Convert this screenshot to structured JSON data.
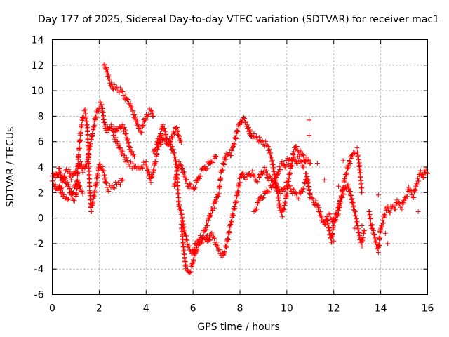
{
  "chart_data": {
    "type": "scatter",
    "title": "Day 177 of 2025, Sidereal Day-to-day VTEC variation (SDTVAR) for receiver mac1",
    "xlabel": "GPS time / hours",
    "ylabel": "SDTVAR / TECUs",
    "xlim": [
      0,
      16
    ],
    "ylim": [
      -6,
      14
    ],
    "xticks": [
      0,
      2,
      4,
      6,
      8,
      10,
      12,
      14,
      16
    ],
    "yticks": [
      -6,
      -4,
      -2,
      0,
      2,
      4,
      6,
      8,
      10,
      12,
      14
    ],
    "grid": true,
    "marker": "+",
    "color": "#ff0000",
    "series": [
      {
        "name": "trace-1",
        "x": [
          0.0,
          0.1,
          0.2,
          0.3,
          0.35,
          0.4,
          0.5,
          0.6,
          0.7,
          0.8,
          0.9,
          1.0,
          1.1,
          1.2,
          1.3,
          1.4,
          1.5,
          1.6,
          1.7,
          1.8,
          1.9,
          2.0,
          2.05,
          2.1,
          2.15,
          2.2,
          2.3,
          2.4,
          2.5,
          2.6,
          2.7,
          2.8,
          2.9,
          3.0,
          3.1,
          3.2,
          3.3,
          3.4,
          3.5
        ],
        "y": [
          3.3,
          3.5,
          3.2,
          3.8,
          3.4,
          3.0,
          3.3,
          3.6,
          3.7,
          3.2,
          3.4,
          3.8,
          3.9,
          4.3,
          3.8,
          4.0,
          4.5,
          5.5,
          6.5,
          7.5,
          8.3,
          8.7,
          8.9,
          8.8,
          8.5,
          7.5,
          7.0,
          6.8,
          7.2,
          7.0,
          6.8,
          7.1,
          6.9,
          7.2,
          6.8,
          6.2,
          5.5,
          5.0,
          4.8
        ]
      },
      {
        "name": "trace-2",
        "x": [
          0.3,
          0.4,
          0.5,
          0.6,
          0.7,
          0.8,
          0.9,
          1.0,
          1.05,
          1.1,
          1.2,
          1.3,
          1.4,
          1.5,
          1.55,
          1.6,
          1.65,
          1.7,
          1.8,
          1.9,
          2.0,
          2.1,
          2.2,
          2.3,
          2.4,
          2.5,
          2.6,
          2.7,
          2.8,
          2.9,
          3.0
        ],
        "y": [
          2.5,
          2.0,
          1.6,
          1.5,
          1.7,
          1.8,
          1.5,
          1.6,
          2.3,
          4.5,
          6.5,
          8.0,
          8.3,
          7.0,
          4.5,
          2.0,
          0.6,
          0.9,
          2.0,
          3.0,
          4.2,
          4.0,
          3.5,
          2.6,
          2.3,
          2.4,
          2.5,
          2.6,
          2.7,
          2.8,
          3.0
        ]
      },
      {
        "name": "trace-3",
        "x": [
          0.0,
          0.1,
          0.2,
          0.3,
          0.4,
          0.5,
          0.6,
          0.7,
          0.8,
          0.9,
          1.0,
          1.1,
          1.2,
          1.3
        ],
        "y": [
          2.9,
          2.6,
          2.1,
          2.3,
          2.6,
          3.3,
          2.8,
          2.4,
          2.0,
          2.2,
          2.6,
          2.8,
          2.2,
          1.9
        ]
      },
      {
        "name": "trace-4",
        "x": [
          2.2,
          2.3,
          2.4,
          2.5,
          2.6,
          2.7,
          2.8,
          2.9,
          3.0,
          3.1,
          3.2,
          3.3,
          3.4,
          3.5,
          3.6,
          3.7,
          3.8,
          3.9,
          4.0,
          4.1,
          4.2,
          4.25,
          4.3
        ],
        "y": [
          12.0,
          11.8,
          11.0,
          10.5,
          10.3,
          10.2,
          10.1,
          10.0,
          9.8,
          9.5,
          9.3,
          9.0,
          8.5,
          8.0,
          7.5,
          7.0,
          6.8,
          7.5,
          8.0,
          8.3,
          8.4,
          8.3,
          8.0
        ]
      },
      {
        "name": "trace-5",
        "x": [
          2.6,
          2.8,
          3.0,
          3.2,
          3.4,
          3.6,
          3.8,
          4.0,
          4.1,
          4.2,
          4.3,
          4.4,
          4.5,
          4.6,
          4.7,
          4.8,
          4.9,
          5.0,
          5.1,
          5.2,
          5.3,
          5.4,
          5.5
        ],
        "y": [
          6.5,
          5.8,
          5.0,
          4.4,
          4.1,
          3.9,
          4.1,
          4.2,
          3.5,
          3.0,
          3.6,
          4.5,
          5.5,
          6.5,
          7.2,
          6.8,
          6.0,
          5.7,
          6.3,
          6.8,
          7.1,
          6.4,
          5.9
        ]
      },
      {
        "name": "trace-6",
        "x": [
          4.3,
          4.4,
          4.5,
          4.6,
          4.7,
          4.8,
          4.9,
          5.0,
          5.1,
          5.2,
          5.3,
          5.4,
          5.5,
          5.6,
          5.7,
          5.8,
          5.9,
          6.0,
          6.1,
          6.2,
          6.3,
          6.4,
          6.5,
          6.6,
          6.7
        ],
        "y": [
          5.2,
          5.5,
          6.0,
          5.8,
          6.3,
          6.1,
          5.9,
          6.0,
          5.5,
          5.0,
          4.0,
          1.0,
          0.4,
          -0.8,
          -1.5,
          -2.2,
          -2.5,
          -2.8,
          -2.1,
          -2.4,
          -2.0,
          -1.6,
          -1.8,
          -1.5,
          -1.4
        ]
      },
      {
        "name": "trace-7",
        "x": [
          5.5,
          5.6,
          5.7,
          5.8,
          5.9,
          6.0,
          6.1,
          6.2,
          6.3,
          6.4,
          6.5,
          6.6,
          6.7,
          6.8,
          6.9,
          7.0,
          7.1,
          7.2,
          7.3,
          7.4,
          7.5,
          7.6,
          7.7,
          7.8,
          7.9,
          8.0,
          8.1,
          8.2,
          8.3,
          8.4,
          8.5
        ],
        "y": [
          -0.5,
          -2.5,
          -4.0,
          -4.3,
          -4.0,
          -3.5,
          -2.5,
          -2.0,
          -1.5,
          -1.3,
          -1.0,
          -0.5,
          0.0,
          0.6,
          1.0,
          1.6,
          2.0,
          3.5,
          4.2,
          4.8,
          5.0,
          5.0,
          5.5,
          6.2,
          7.0,
          7.4,
          7.8,
          7.6,
          7.2,
          6.8,
          6.5
        ]
      },
      {
        "name": "trace-8",
        "x": [
          5.2,
          5.3,
          5.4,
          5.5,
          5.6,
          5.7,
          5.8,
          5.9,
          6.0,
          6.1,
          6.2,
          6.3,
          6.4,
          6.5,
          6.6,
          6.7,
          6.8,
          6.9,
          7.0
        ],
        "y": [
          2.5,
          3.5,
          4.2,
          4.0,
          3.5,
          3.0,
          2.6,
          2.4,
          2.3,
          2.6,
          3.0,
          3.4,
          3.7,
          3.9,
          4.1,
          4.3,
          4.5,
          4.6,
          4.8
        ]
      },
      {
        "name": "trace-9",
        "x": [
          6.6,
          6.7,
          6.8,
          6.9,
          7.0,
          7.1,
          7.2,
          7.3,
          7.4,
          7.5,
          7.6,
          7.7,
          7.8,
          7.9,
          8.0,
          8.1,
          8.2,
          8.3,
          8.4,
          8.5,
          8.6,
          8.7,
          8.8,
          8.9,
          9.0,
          9.1,
          9.2,
          9.3,
          9.4,
          9.5,
          9.6,
          9.7,
          9.8,
          9.9,
          10.0,
          10.1,
          10.2,
          10.3,
          10.4,
          10.5,
          10.6,
          10.7,
          10.8
        ],
        "y": [
          -1.8,
          -1.6,
          -1.4,
          -1.7,
          -2.0,
          -2.5,
          -2.8,
          -3.0,
          -2.3,
          -1.5,
          -0.5,
          0.3,
          1.0,
          2.0,
          3.0,
          3.5,
          3.3,
          3.2,
          3.4,
          3.6,
          3.3,
          3.0,
          3.1,
          3.5,
          3.8,
          3.7,
          3.2,
          3.0,
          2.8,
          3.0,
          3.4,
          3.9,
          4.2,
          4.0,
          4.4,
          4.6,
          4.2,
          4.5,
          4.3,
          4.7,
          4.4,
          4.1,
          4.5
        ]
      },
      {
        "name": "trace-10",
        "x": [
          8.4,
          8.5,
          8.6,
          8.7,
          8.8,
          8.9,
          9.0,
          9.1,
          9.2,
          9.3,
          9.4,
          9.5,
          9.6,
          9.7,
          9.8,
          9.9,
          10.0,
          10.1,
          10.2,
          10.3,
          10.4,
          10.5,
          10.6,
          10.7,
          10.8,
          10.9,
          11.0
        ],
        "y": [
          6.8,
          6.5,
          6.4,
          6.3,
          6.2,
          6.0,
          5.9,
          5.8,
          5.5,
          5.0,
          4.2,
          3.0,
          2.0,
          0.8,
          0.3,
          1.0,
          2.0,
          3.2,
          4.5,
          5.2,
          5.6,
          5.3,
          5.0,
          4.8,
          4.6,
          4.5,
          4.3
        ]
      },
      {
        "name": "trace-11",
        "x": [
          8.6,
          8.7,
          8.8,
          8.9,
          9.0,
          9.1,
          9.2,
          9.3,
          9.4,
          9.5,
          9.6,
          9.7,
          9.8,
          9.9,
          10.0,
          10.1,
          10.2,
          10.3,
          10.4,
          10.5,
          10.6,
          10.7,
          10.8,
          10.9
        ],
        "y": [
          0.5,
          0.8,
          1.3,
          1.6,
          1.8,
          2.0,
          2.2,
          2.3,
          2.5,
          2.6,
          2.4,
          2.2,
          2.0,
          2.3,
          2.7,
          2.5,
          2.2,
          2.0,
          1.8,
          1.7,
          2.0,
          2.4,
          2.8,
          3.0
        ]
      },
      {
        "name": "trace-12",
        "x": [
          10.8,
          10.9,
          11.0,
          11.1,
          11.2,
          11.3,
          11.4,
          11.5,
          11.6,
          11.7,
          11.8,
          11.9,
          12.0,
          12.1,
          12.2,
          12.3,
          12.4,
          12.5,
          12.6,
          12.7,
          12.8,
          12.9,
          13.0,
          13.1,
          13.2
        ],
        "y": [
          3.5,
          2.8,
          1.6,
          1.4,
          1.2,
          1.0,
          0.5,
          -0.2,
          -0.5,
          0.0,
          -1.0,
          -1.8,
          -0.5,
          0.2,
          0.5,
          1.5,
          2.5,
          3.2,
          4.0,
          4.5,
          5.0,
          5.2,
          5.3,
          4.0,
          2.0
        ]
      },
      {
        "name": "trace-13",
        "x": [
          11.8,
          11.9,
          12.0,
          12.1,
          12.2,
          12.3,
          12.4,
          12.5,
          12.6,
          12.7,
          12.8,
          12.9,
          13.0,
          13.1,
          13.2,
          13.3
        ],
        "y": [
          0.3,
          0.0,
          -0.3,
          0.2,
          0.8,
          1.5,
          2.0,
          2.2,
          2.5,
          2.0,
          1.2,
          0.5,
          -0.5,
          -1.5,
          -2.0,
          -1.0
        ]
      },
      {
        "name": "trace-14",
        "x": [
          13.5,
          13.6,
          13.7,
          13.8,
          13.9,
          14.0,
          14.1,
          14.2,
          14.3,
          14.4,
          14.5,
          14.6,
          14.7,
          14.8,
          14.9,
          15.0,
          15.1,
          15.2,
          15.3,
          15.4,
          15.5,
          15.6,
          15.7,
          15.8,
          15.9,
          16.0
        ],
        "y": [
          0.5,
          -0.5,
          -1.2,
          -2.0,
          -2.5,
          -0.8,
          -0.3,
          0.5,
          0.8,
          0.6,
          0.9,
          0.8,
          1.2,
          1.0,
          0.9,
          1.4,
          1.8,
          2.2,
          2.0,
          1.8,
          2.5,
          3.0,
          3.5,
          3.2,
          3.7,
          3.5
        ]
      },
      {
        "name": "scatter-extra",
        "x": [
          10.95,
          10.95,
          11.3,
          11.6,
          12.0,
          12.2,
          12.4,
          12.6,
          12.9,
          13.2,
          13.9,
          14.2,
          14.3,
          15.6
        ],
        "y": [
          7.7,
          6.5,
          4.3,
          3.0,
          -1.8,
          2.5,
          4.5,
          3.9,
          -0.8,
          -0.6,
          1.8,
          -1.2,
          -2.0,
          0.5
        ]
      }
    ]
  }
}
